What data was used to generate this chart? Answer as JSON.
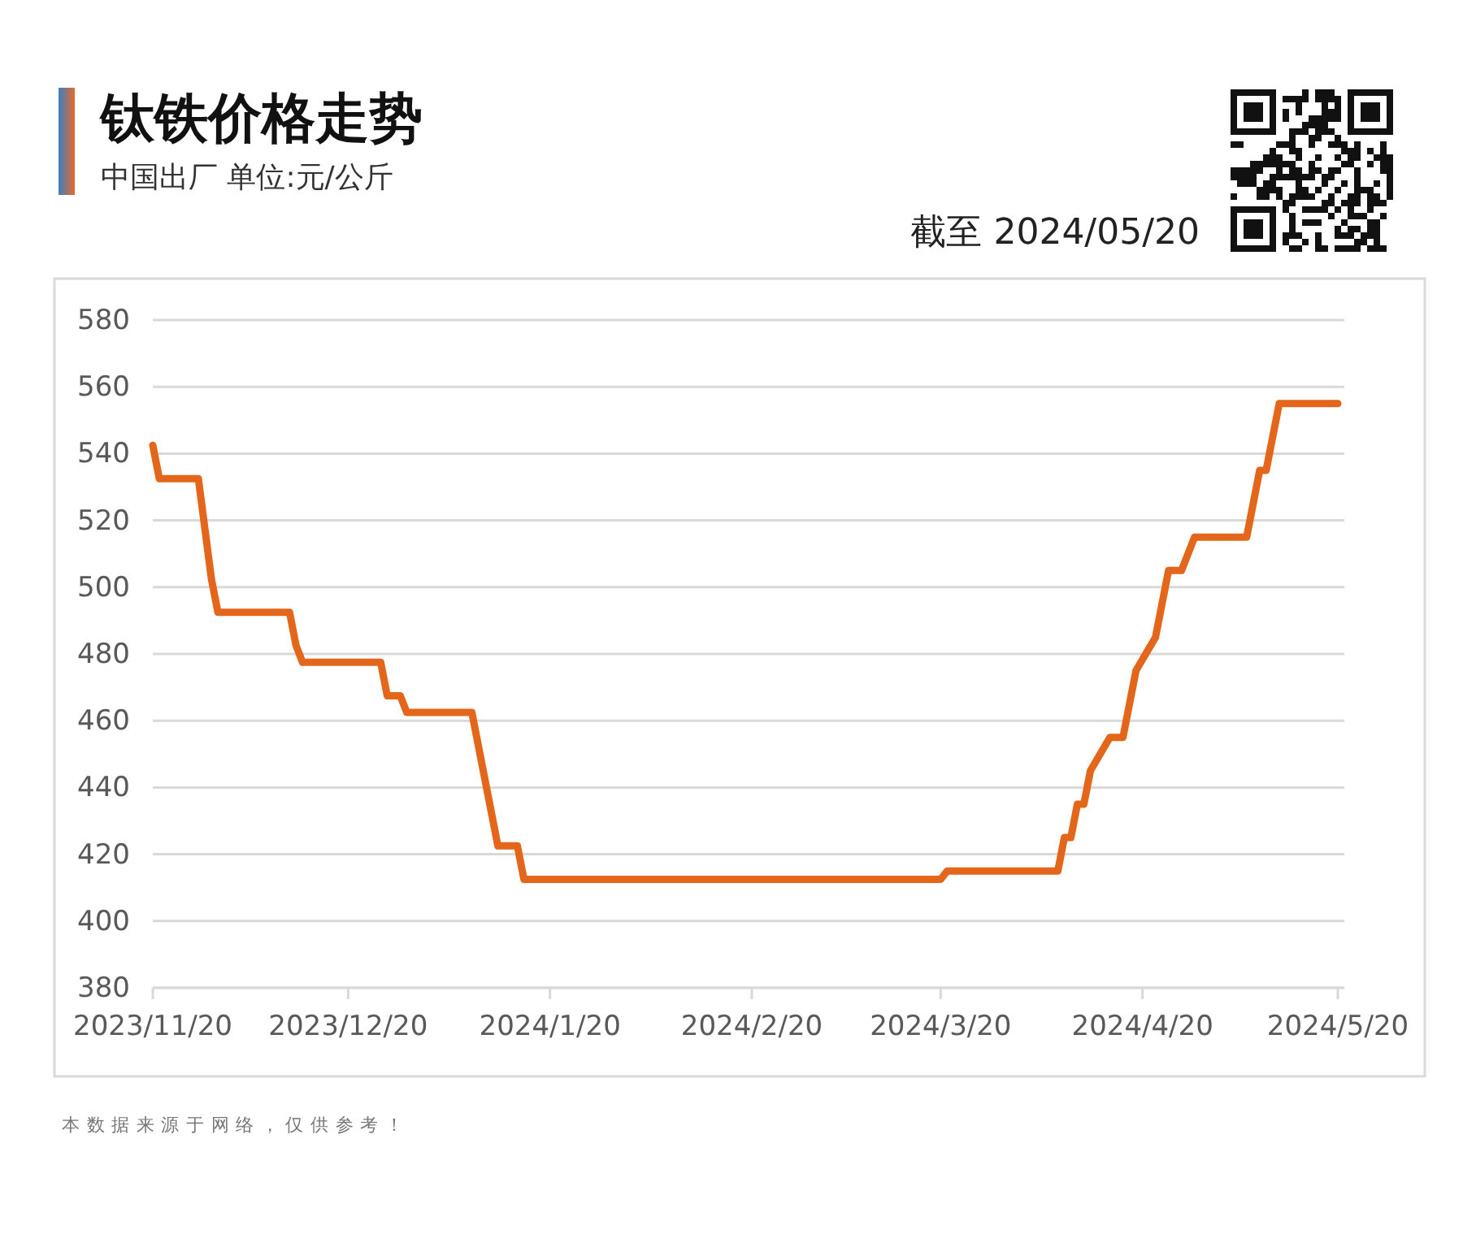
{
  "chart_data": {
    "type": "line",
    "title": "钛铁价格走势",
    "subtitle": "中国出厂 单位:元/公斤",
    "annotations": [
      "截至 2024/05/20",
      "本数据来源于网络，仅供参考！"
    ],
    "x": [
      "2023-11-20",
      "2023-11-21",
      "2023-11-27",
      "2023-11-29",
      "2023-11-30",
      "2023-12-11",
      "2023-12-12",
      "2023-12-13",
      "2023-12-25",
      "2023-12-26",
      "2023-12-28",
      "2023-12-29",
      "2024-01-08",
      "2024-01-12",
      "2024-01-15",
      "2024-01-16",
      "2024-03-20",
      "2024-03-21",
      "2024-04-07",
      "2024-04-08",
      "2024-04-09",
      "2024-04-10",
      "2024-04-11",
      "2024-04-12",
      "2024-04-15",
      "2024-04-17",
      "2024-04-19",
      "2024-04-22",
      "2024-04-24",
      "2024-04-26",
      "2024-04-28",
      "2024-05-06",
      "2024-05-08",
      "2024-05-09",
      "2024-05-11",
      "2024-05-20"
    ],
    "series": [
      {
        "color": "#e3661a",
        "values": [
          542.5,
          532.5,
          532.5,
          502.5,
          492.5,
          492.5,
          482.5,
          477.5,
          477.5,
          467.5,
          467.5,
          462.5,
          462.5,
          422.5,
          422.5,
          412.5,
          412.5,
          415,
          415,
          425,
          425,
          435,
          435,
          445,
          455,
          455,
          475,
          485,
          505,
          505,
          515,
          515,
          535,
          535,
          555,
          555
        ]
      }
    ],
    "xlim": [
      "2023-11-20",
      "2024-05-21"
    ],
    "xticks": [
      {
        "value": "2023-11-20",
        "label": "2023/11/20"
      },
      {
        "value": "2023-12-20",
        "label": "2023/12/20"
      },
      {
        "value": "2024-01-20",
        "label": "2024/1/20"
      },
      {
        "value": "2024-02-20",
        "label": "2024/2/20"
      },
      {
        "value": "2024-03-20",
        "label": "2024/3/20"
      },
      {
        "value": "2024-04-20",
        "label": "2024/4/20"
      },
      {
        "value": "2024-05-20",
        "label": "2024/5/20"
      }
    ],
    "ylim": [
      380,
      580
    ],
    "yticks": [
      380,
      400,
      420,
      440,
      460,
      480,
      500,
      520,
      540,
      560,
      580
    ],
    "grid": "y",
    "marker": "none",
    "line_style": "solid"
  }
}
